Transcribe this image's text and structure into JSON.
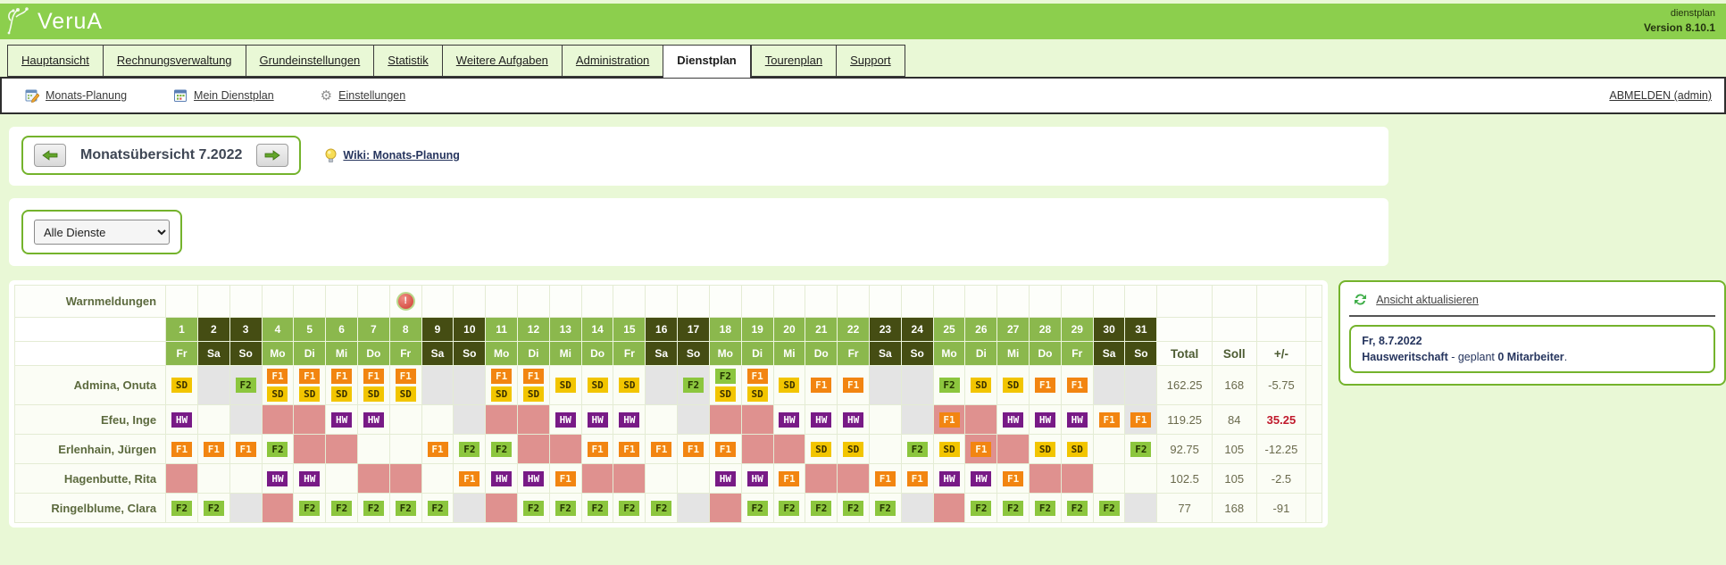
{
  "app": {
    "brand": "VeruA",
    "product": "dienstplan",
    "version": "Version 8.10.1"
  },
  "tabs": [
    {
      "label": "Hauptansicht",
      "active": false
    },
    {
      "label": "Rechnungsverwaltung",
      "active": false
    },
    {
      "label": "Grundeinstellungen",
      "active": false
    },
    {
      "label": "Statistik",
      "active": false
    },
    {
      "label": "Weitere Aufgaben",
      "active": false
    },
    {
      "label": "Administration",
      "active": false
    },
    {
      "label": "Dienstplan",
      "active": true
    },
    {
      "label": "Tourenplan",
      "active": false
    },
    {
      "label": "Support",
      "active": false
    }
  ],
  "toolbar": {
    "monats_planung": "Monats-Planung",
    "mein_dienstplan": "Mein Dienstplan",
    "einstellungen": "Einstellungen",
    "logout": "ABMELDEN (admin)"
  },
  "month_nav": {
    "title": "Monatsübersicht 7.2022",
    "wiki_label": "Wiki: Monats-Planung"
  },
  "filter": {
    "selected": "Alle Dienste"
  },
  "roster": {
    "warn_label": "Warnmeldungen",
    "warning_day": 8,
    "totals_headers": [
      "Total",
      "Soll",
      "+/-"
    ],
    "shift_colors": {
      "SD": {
        "bg": "#f2c500",
        "fg": "#3a3000"
      },
      "F1": {
        "bg": "#f28511",
        "fg": "#fffbe6"
      },
      "F2": {
        "bg": "#8cc63e",
        "fg": "#243300"
      },
      "HW": {
        "bg": "#781a86",
        "fg": "#ffffff"
      }
    },
    "absence_color": "#df918f",
    "blocked_color": "#e4e4e4",
    "header_green": "#8bb84d",
    "header_weekend": "#454d13",
    "days": [
      {
        "n": 1,
        "wd": "Fr"
      },
      {
        "n": 2,
        "wd": "Sa",
        "we": true
      },
      {
        "n": 3,
        "wd": "So",
        "we": true
      },
      {
        "n": 4,
        "wd": "Mo"
      },
      {
        "n": 5,
        "wd": "Di"
      },
      {
        "n": 6,
        "wd": "Mi"
      },
      {
        "n": 7,
        "wd": "Do"
      },
      {
        "n": 8,
        "wd": "Fr"
      },
      {
        "n": 9,
        "wd": "Sa",
        "we": true
      },
      {
        "n": 10,
        "wd": "So",
        "we": true
      },
      {
        "n": 11,
        "wd": "Mo"
      },
      {
        "n": 12,
        "wd": "Di"
      },
      {
        "n": 13,
        "wd": "Mi"
      },
      {
        "n": 14,
        "wd": "Do"
      },
      {
        "n": 15,
        "wd": "Fr"
      },
      {
        "n": 16,
        "wd": "Sa",
        "we": true
      },
      {
        "n": 17,
        "wd": "So",
        "we": true
      },
      {
        "n": 18,
        "wd": "Mo"
      },
      {
        "n": 19,
        "wd": "Di"
      },
      {
        "n": 20,
        "wd": "Mi"
      },
      {
        "n": 21,
        "wd": "Do"
      },
      {
        "n": 22,
        "wd": "Fr"
      },
      {
        "n": 23,
        "wd": "Sa",
        "we": true
      },
      {
        "n": 24,
        "wd": "So",
        "we": true
      },
      {
        "n": 25,
        "wd": "Mo"
      },
      {
        "n": 26,
        "wd": "Di"
      },
      {
        "n": 27,
        "wd": "Mi"
      },
      {
        "n": 28,
        "wd": "Do"
      },
      {
        "n": 29,
        "wd": "Fr"
      },
      {
        "n": 30,
        "wd": "Sa",
        "we": true
      },
      {
        "n": 31,
        "wd": "So",
        "we": true
      }
    ],
    "employees": [
      {
        "name": "Admina, Onuta",
        "total": "162.25",
        "soll": "168",
        "diff": "-5.75",
        "diff_red": false,
        "cells": [
          {
            "b": [
              "SD"
            ]
          },
          {
            "bg": "g"
          },
          {
            "b": [
              "F2"
            ],
            "bg": "g"
          },
          {
            "b": [
              "F1",
              "SD"
            ]
          },
          {
            "b": [
              "F1",
              "SD"
            ]
          },
          {
            "b": [
              "F1",
              "SD"
            ]
          },
          {
            "b": [
              "F1",
              "SD"
            ]
          },
          {
            "b": [
              "F1",
              "SD"
            ]
          },
          {
            "bg": "g"
          },
          {
            "bg": "g"
          },
          {
            "b": [
              "F1",
              "SD"
            ]
          },
          {
            "b": [
              "F1",
              "SD"
            ]
          },
          {
            "b": [
              "SD"
            ]
          },
          {
            "b": [
              "SD"
            ]
          },
          {
            "b": [
              "SD"
            ]
          },
          {
            "bg": "g"
          },
          {
            "b": [
              "F2"
            ],
            "bg": "g"
          },
          {
            "b": [
              "F2",
              "SD"
            ]
          },
          {
            "b": [
              "F1",
              "SD"
            ]
          },
          {
            "b": [
              "SD"
            ]
          },
          {
            "b": [
              "F1"
            ]
          },
          {
            "b": [
              "F1"
            ]
          },
          {
            "bg": "g"
          },
          {
            "bg": "g"
          },
          {
            "b": [
              "F2"
            ]
          },
          {
            "b": [
              "SD"
            ]
          },
          {
            "b": [
              "SD"
            ]
          },
          {
            "b": [
              "F1"
            ]
          },
          {
            "b": [
              "F1"
            ]
          },
          {
            "bg": "g"
          },
          {
            "bg": "g"
          }
        ]
      },
      {
        "name": "Efeu, Inge",
        "total": "119.25",
        "soll": "84",
        "diff": "35.25",
        "diff_red": true,
        "cells": [
          {
            "b": [
              "HW"
            ]
          },
          {},
          {
            "bg": "g"
          },
          {
            "bg": "p"
          },
          {
            "bg": "p"
          },
          {
            "b": [
              "HW"
            ]
          },
          {
            "b": [
              "HW"
            ]
          },
          {},
          {},
          {
            "bg": "g"
          },
          {
            "bg": "p"
          },
          {
            "bg": "p"
          },
          {
            "b": [
              "HW"
            ]
          },
          {
            "b": [
              "HW"
            ]
          },
          {
            "b": [
              "HW"
            ]
          },
          {},
          {
            "bg": "g"
          },
          {
            "bg": "p"
          },
          {
            "bg": "p"
          },
          {
            "b": [
              "HW"
            ]
          },
          {
            "b": [
              "HW"
            ]
          },
          {
            "b": [
              "HW"
            ]
          },
          {},
          {
            "bg": "g"
          },
          {
            "b": [
              "F1"
            ],
            "bg": "p"
          },
          {
            "bg": "p"
          },
          {
            "b": [
              "HW"
            ]
          },
          {
            "b": [
              "HW"
            ]
          },
          {
            "b": [
              "HW"
            ]
          },
          {
            "b": [
              "F1"
            ]
          },
          {
            "b": [
              "F1"
            ],
            "bg": "g"
          }
        ]
      },
      {
        "name": "Erlenhain, Jürgen",
        "total": "92.75",
        "soll": "105",
        "diff": "-12.25",
        "diff_red": false,
        "cells": [
          {
            "b": [
              "F1"
            ]
          },
          {
            "b": [
              "F1"
            ]
          },
          {
            "b": [
              "F1"
            ]
          },
          {
            "b": [
              "F2"
            ]
          },
          {
            "bg": "p"
          },
          {
            "bg": "p"
          },
          {},
          {},
          {
            "b": [
              "F1"
            ]
          },
          {
            "b": [
              "F2"
            ]
          },
          {
            "b": [
              "F2"
            ]
          },
          {
            "bg": "p"
          },
          {
            "bg": "p"
          },
          {
            "b": [
              "F1"
            ]
          },
          {
            "b": [
              "F1"
            ]
          },
          {
            "b": [
              "F1"
            ]
          },
          {
            "b": [
              "F1"
            ]
          },
          {
            "b": [
              "F1"
            ]
          },
          {
            "bg": "p"
          },
          {
            "bg": "p"
          },
          {
            "b": [
              "SD"
            ]
          },
          {
            "b": [
              "SD"
            ]
          },
          {},
          {
            "b": [
              "F2"
            ]
          },
          {
            "b": [
              "SD"
            ]
          },
          {
            "b": [
              "F1"
            ],
            "bg": "p"
          },
          {
            "bg": "p"
          },
          {
            "b": [
              "SD"
            ]
          },
          {
            "b": [
              "SD"
            ]
          },
          {},
          {
            "b": [
              "F2"
            ]
          }
        ]
      },
      {
        "name": "Hagenbutte, Rita",
        "total": "102.5",
        "soll": "105",
        "diff": "-2.5",
        "diff_red": false,
        "cells": [
          {
            "bg": "p"
          },
          {},
          {},
          {
            "b": [
              "HW"
            ]
          },
          {
            "b": [
              "HW"
            ]
          },
          {},
          {
            "bg": "p"
          },
          {
            "bg": "p"
          },
          {},
          {
            "b": [
              "F1"
            ]
          },
          {
            "b": [
              "HW"
            ]
          },
          {
            "b": [
              "HW"
            ]
          },
          {
            "b": [
              "F1"
            ]
          },
          {
            "bg": "p"
          },
          {
            "bg": "p"
          },
          {},
          {},
          {
            "b": [
              "HW"
            ]
          },
          {
            "b": [
              "HW"
            ]
          },
          {
            "b": [
              "F1"
            ]
          },
          {
            "bg": "p"
          },
          {
            "bg": "p"
          },
          {
            "b": [
              "F1"
            ]
          },
          {
            "b": [
              "F1"
            ]
          },
          {
            "b": [
              "HW"
            ]
          },
          {
            "b": [
              "HW"
            ]
          },
          {
            "b": [
              "F1"
            ]
          },
          {
            "bg": "p"
          },
          {
            "bg": "p"
          },
          {},
          {}
        ]
      },
      {
        "name": "Ringelblume, Clara",
        "total": "77",
        "soll": "168",
        "diff": "-91",
        "diff_red": false,
        "cells": [
          {
            "b": [
              "F2"
            ]
          },
          {
            "b": [
              "F2"
            ]
          },
          {
            "bg": "g"
          },
          {
            "bg": "p"
          },
          {
            "b": [
              "F2"
            ]
          },
          {
            "b": [
              "F2"
            ]
          },
          {
            "b": [
              "F2"
            ]
          },
          {
            "b": [
              "F2"
            ]
          },
          {
            "b": [
              "F2"
            ]
          },
          {
            "bg": "g"
          },
          {
            "bg": "p"
          },
          {
            "b": [
              "F2"
            ]
          },
          {
            "b": [
              "F2"
            ]
          },
          {
            "b": [
              "F2"
            ]
          },
          {
            "b": [
              "F2"
            ]
          },
          {
            "b": [
              "F2"
            ]
          },
          {
            "bg": "g"
          },
          {
            "bg": "p"
          },
          {
            "b": [
              "F2"
            ]
          },
          {
            "b": [
              "F2"
            ]
          },
          {
            "b": [
              "F2"
            ]
          },
          {
            "b": [
              "F2"
            ]
          },
          {
            "b": [
              "F2"
            ]
          },
          {
            "bg": "g"
          },
          {
            "bg": "p"
          },
          {
            "b": [
              "F2"
            ]
          },
          {
            "b": [
              "F2"
            ]
          },
          {
            "b": [
              "F2"
            ]
          },
          {
            "b": [
              "F2"
            ]
          },
          {
            "b": [
              "F2"
            ]
          },
          {
            "bg": "g"
          }
        ]
      }
    ]
  },
  "side_panel": {
    "refresh_label": "Ansicht aktualisieren",
    "info_date": "Fr, 8.7.2022",
    "info_name": "Hausweritschaft",
    "info_mid": " - geplant ",
    "info_count": "0 Mitarbeiter",
    "info_end": "."
  }
}
